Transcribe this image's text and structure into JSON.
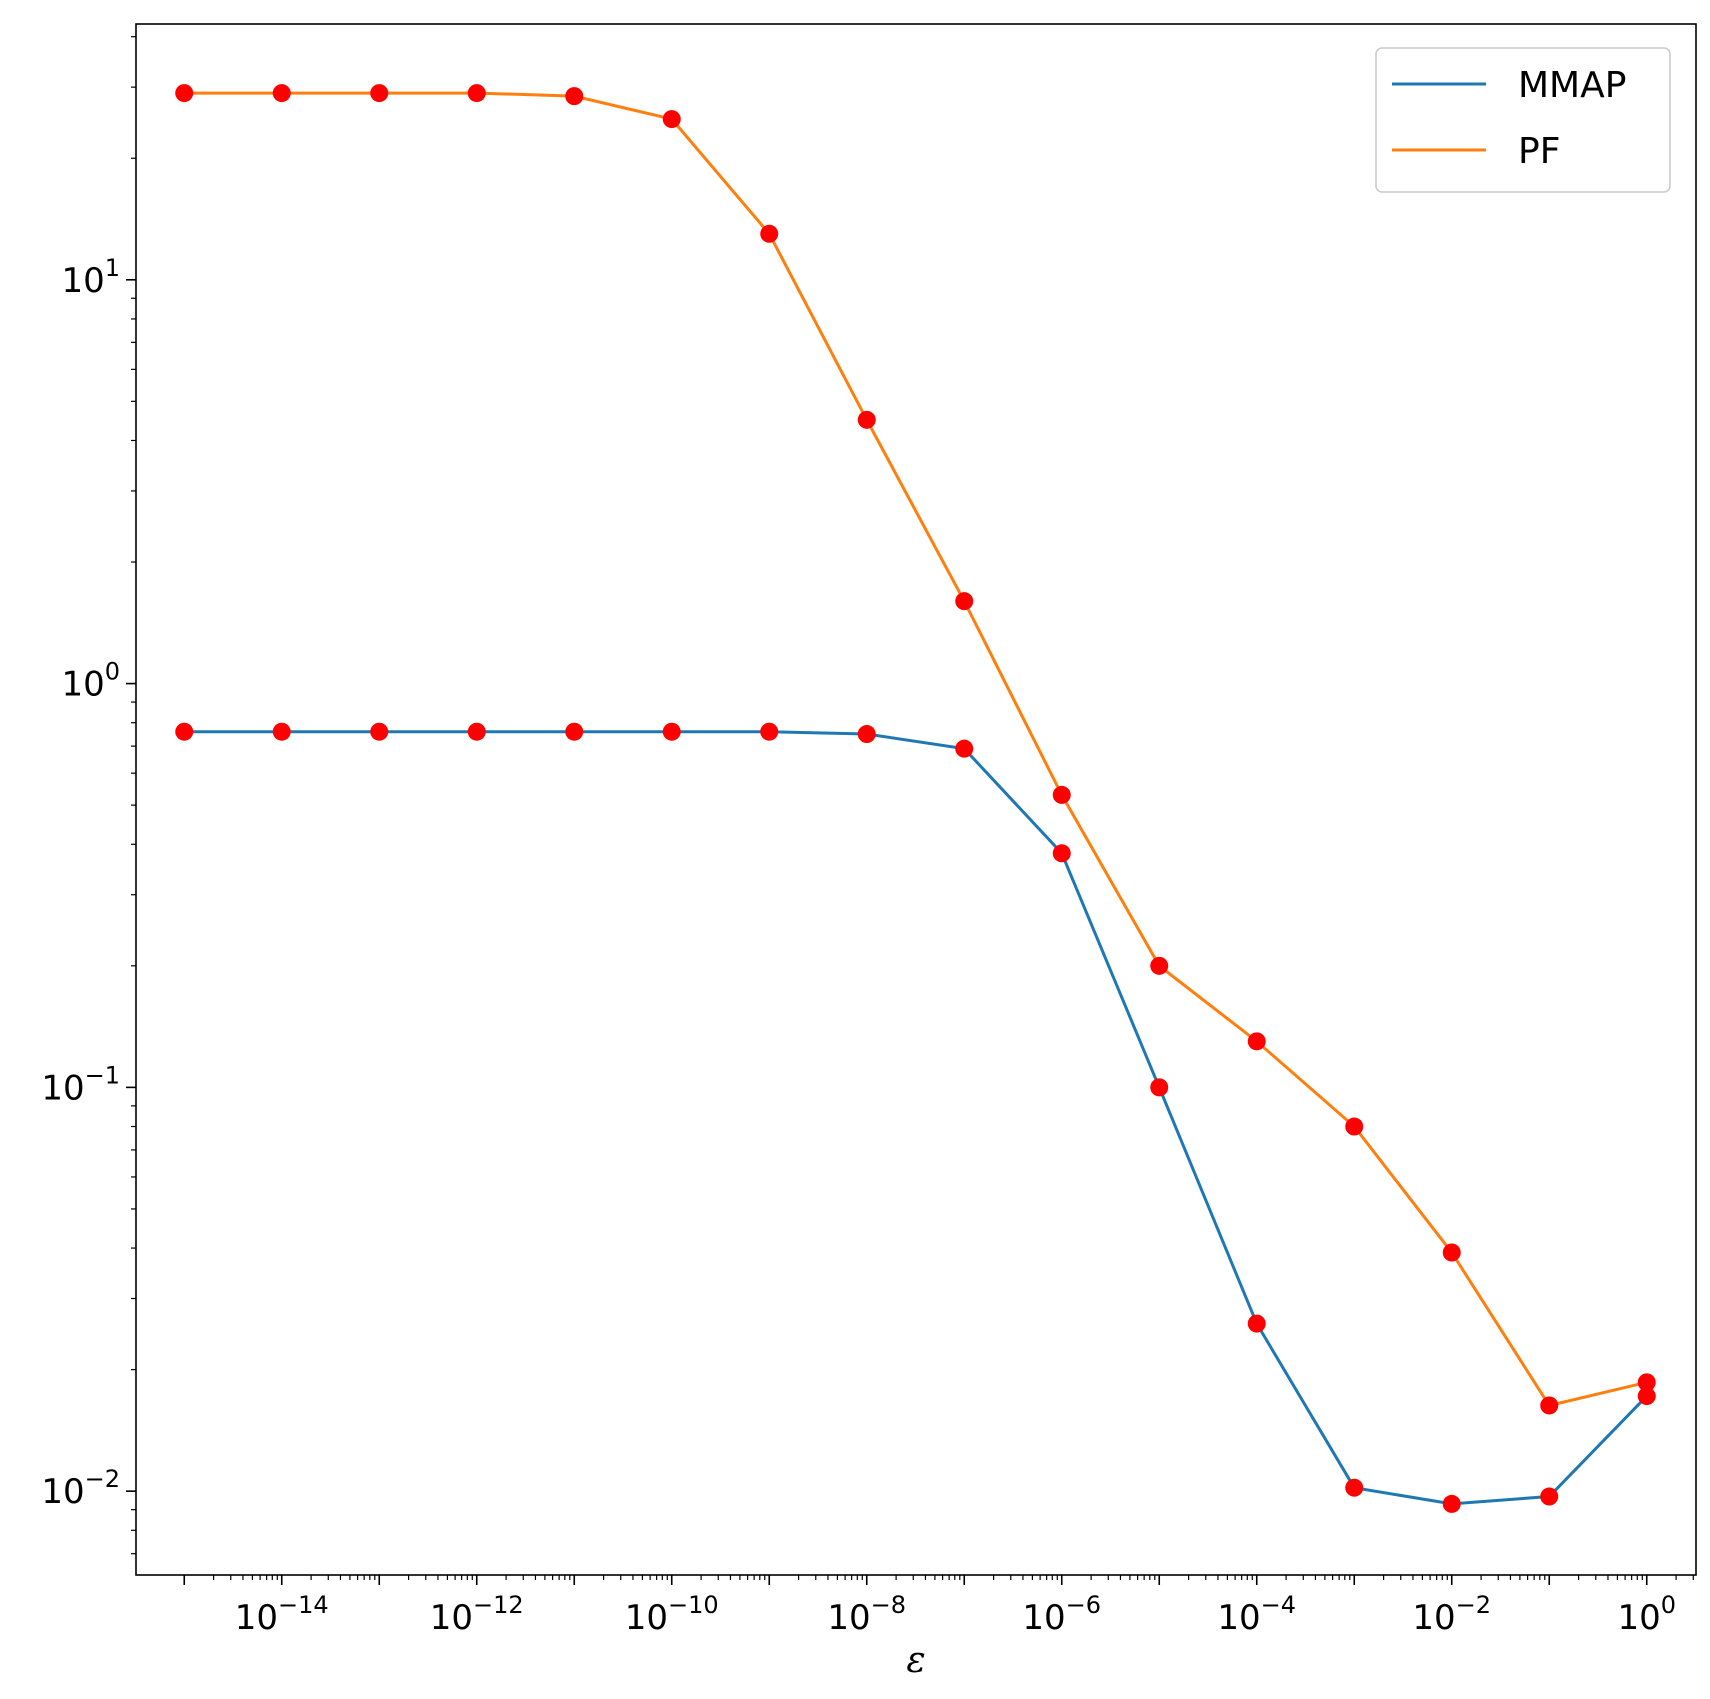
{
  "chart_data": {
    "type": "line",
    "xscale": "log",
    "yscale": "log",
    "xlabel": "ε",
    "ylabel": "",
    "title": "",
    "legend_position": "top-right",
    "grid": false,
    "xlim": [
      3.2e-16,
      3.2
    ],
    "ylim": [
      0.0062,
      43
    ],
    "x": [
      1e-15,
      1e-14,
      1e-13,
      1e-12,
      1e-11,
      1e-10,
      1e-09,
      1e-08,
      1e-07,
      1e-06,
      1e-05,
      0.0001,
      0.001,
      0.01,
      0.1,
      1
    ],
    "x_tick_labels": [
      {
        "value": 1e-14,
        "base": "10",
        "exp": "−14"
      },
      {
        "value": 1e-12,
        "base": "10",
        "exp": "−12"
      },
      {
        "value": 1e-10,
        "base": "10",
        "exp": "−10"
      },
      {
        "value": 1e-08,
        "base": "10",
        "exp": "−8"
      },
      {
        "value": 1e-06,
        "base": "10",
        "exp": "−6"
      },
      {
        "value": 0.0001,
        "base": "10",
        "exp": "−4"
      },
      {
        "value": 0.01,
        "base": "10",
        "exp": "−2"
      },
      {
        "value": 1,
        "base": "10",
        "exp": "0"
      }
    ],
    "y_tick_labels": [
      {
        "value": 10,
        "base": "10",
        "exp": "1"
      },
      {
        "value": 1,
        "base": "10",
        "exp": "0"
      },
      {
        "value": 0.1,
        "base": "10",
        "exp": "−1"
      },
      {
        "value": 0.01,
        "base": "10",
        "exp": "−2"
      }
    ],
    "series": [
      {
        "name": "MMAP",
        "color": "#1f77b4",
        "values": [
          0.76,
          0.76,
          0.76,
          0.76,
          0.76,
          0.76,
          0.76,
          0.75,
          0.69,
          0.38,
          0.1,
          0.026,
          0.0102,
          0.0093,
          0.0097,
          0.0172
        ]
      },
      {
        "name": "PF",
        "color": "#ff7f0e",
        "values": [
          29.0,
          29.0,
          29.0,
          29.0,
          28.5,
          25.0,
          13.0,
          4.5,
          1.6,
          0.53,
          0.2,
          0.13,
          0.08,
          0.039,
          0.0163,
          0.0186
        ]
      }
    ],
    "marker_color": "#ff0000"
  }
}
